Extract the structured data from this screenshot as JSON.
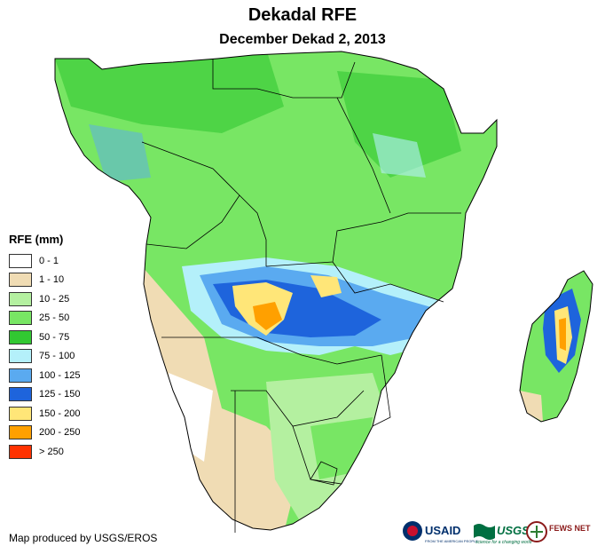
{
  "title": "Dekadal RFE",
  "subtitle": "December Dekad 2, 2013",
  "legend": {
    "title": "RFE (mm)",
    "items": [
      {
        "label": "0 - 1",
        "color": "#ffffff"
      },
      {
        "label": "1 - 10",
        "color": "#f0dcb4"
      },
      {
        "label": "10 - 25",
        "color": "#b4f0a0"
      },
      {
        "label": "25 - 50",
        "color": "#78e664"
      },
      {
        "label": "50 - 75",
        "color": "#32c832"
      },
      {
        "label": "75 - 100",
        "color": "#b4f0fa"
      },
      {
        "label": "100 - 125",
        "color": "#5aaaf0"
      },
      {
        "label": "125 - 150",
        "color": "#1e64dc"
      },
      {
        "label": "150 - 200",
        "color": "#ffe678"
      },
      {
        "label": "200 - 250",
        "color": "#ffa000"
      },
      {
        "label": "> 250",
        "color": "#ff3200"
      }
    ]
  },
  "credit": "Map produced by USGS/EROS",
  "logos": {
    "usaid": "USAID",
    "usaid_tagline": "FROM THE AMERICAN PEOPLE",
    "usgs": "USGS",
    "usgs_tagline": "science for a changing world",
    "fews": "FEWS NET"
  },
  "colors": {
    "border": "#000000",
    "ocean": "#ffffff"
  }
}
